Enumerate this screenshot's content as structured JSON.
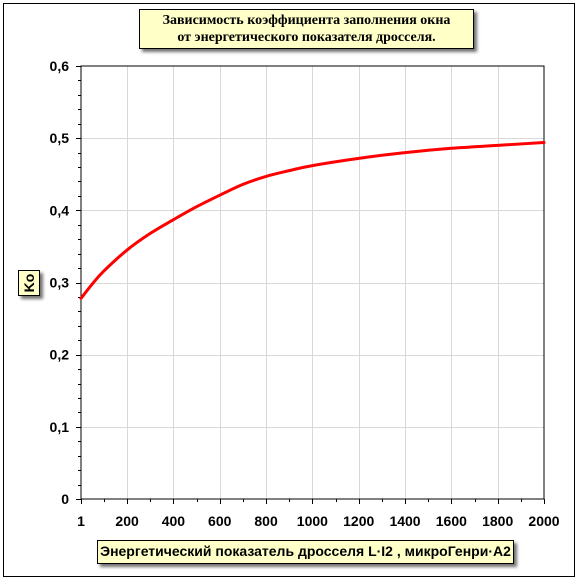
{
  "chart_data": {
    "type": "line",
    "title": [
      "Зависимость коэффициента заполнения окна",
      "от энергетического показателя дросселя."
    ],
    "xlabel": "Энергетический показатель дросселя L·I2 , микроГенри·A2",
    "ylabel": "Ko",
    "xlim": [
      1,
      2000
    ],
    "ylim": [
      0,
      0.6
    ],
    "x_ticks": [
      1,
      200,
      400,
      600,
      800,
      1000,
      1200,
      1400,
      1600,
      1800,
      2000
    ],
    "x_tick_labels": [
      "1",
      "200",
      "400",
      "600",
      "800",
      "1000",
      "1200",
      "1400",
      "1600",
      "1800",
      "2000"
    ],
    "y_ticks": [
      0,
      0.1,
      0.2,
      0.3,
      0.4,
      0.5,
      0.6
    ],
    "y_tick_labels": [
      "0",
      "0,1",
      "0,2",
      "0,3",
      "0,4",
      "0,5",
      "0,6"
    ],
    "grid": true,
    "series": [
      {
        "color": "#ff0000",
        "x": [
          1,
          50,
          100,
          200,
          300,
          400,
          500,
          600,
          700,
          800,
          900,
          1000,
          1200,
          1400,
          1600,
          1800,
          2000
        ],
        "y": [
          0.278,
          0.298,
          0.316,
          0.345,
          0.368,
          0.387,
          0.405,
          0.421,
          0.436,
          0.447,
          0.455,
          0.462,
          0.472,
          0.48,
          0.486,
          0.49,
          0.494
        ]
      }
    ]
  }
}
